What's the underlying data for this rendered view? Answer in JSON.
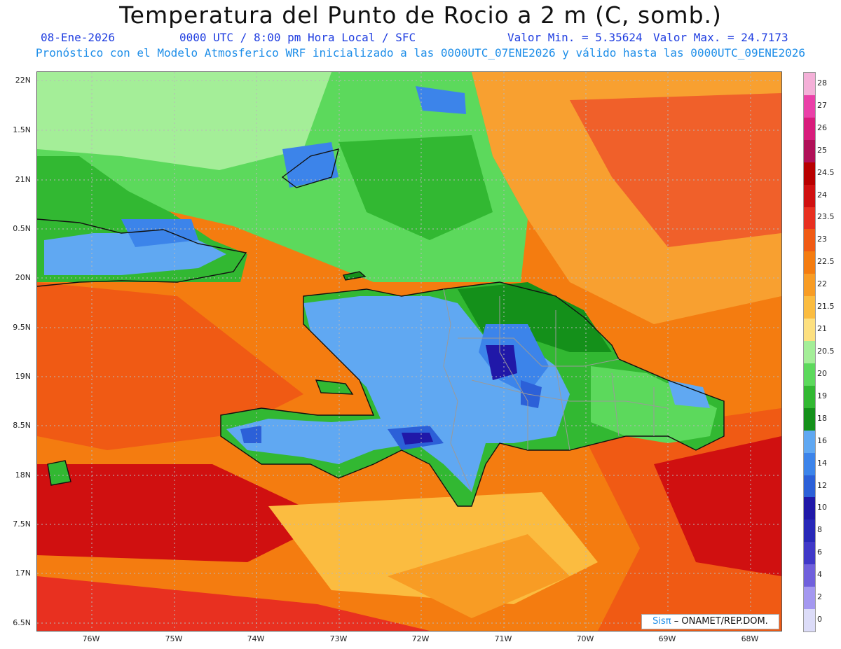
{
  "header": {
    "title": "Temperatura del Punto de Rocio a 2 m (C, somb.)",
    "date": "08-Ene-2026",
    "time": "0000 UTC / 8:00 pm Hora Local / SFC",
    "vmin": "Valor Min. = 5.35624",
    "vmax": "Valor Max. = 24.7173",
    "subtitle": "Pronóstico con el Modelo Atmosferico WRF inicializado a las 0000UTC_07ENE2026 y válido hasta las  0000UTC_09ENE2026"
  },
  "axes": {
    "lat_labels": [
      "22N",
      "1.5N",
      "21N",
      "0.5N",
      "20N",
      "9.5N",
      "19N",
      "8.5N",
      "18N",
      "7.5N",
      "17N",
      "6.5N"
    ],
    "lon_labels": [
      "76W",
      "75W",
      "74W",
      "73W",
      "72W",
      "71W",
      "70W",
      "69W",
      "68W"
    ]
  },
  "colorbar": {
    "labels": [
      "28",
      "27",
      "26",
      "25",
      "24.5",
      "24",
      "23.5",
      "23",
      "22.5",
      "22",
      "21.5",
      "21",
      "20.5",
      "20",
      "19",
      "18",
      "16",
      "14",
      "12",
      "10",
      "8",
      "6",
      "4",
      "2",
      "0"
    ],
    "colors": [
      "#f4b0d8",
      "#ea40a8",
      "#d81c7c",
      "#b01058",
      "#b80000",
      "#d01010",
      "#e83020",
      "#f05a14",
      "#f47c10",
      "#f89c24",
      "#fbbc40",
      "#fde080",
      "#a4ee98",
      "#5cd95c",
      "#32b832",
      "#14901a",
      "#60a8f2",
      "#3c84ea",
      "#2c60d8",
      "#2018a8",
      "#2828b8",
      "#4038c8",
      "#7060dc",
      "#a498f0",
      "#dcdcf8"
    ]
  },
  "credit": {
    "logo": "Sisπ",
    "text": "– ONAMET/REP.DOM."
  }
}
